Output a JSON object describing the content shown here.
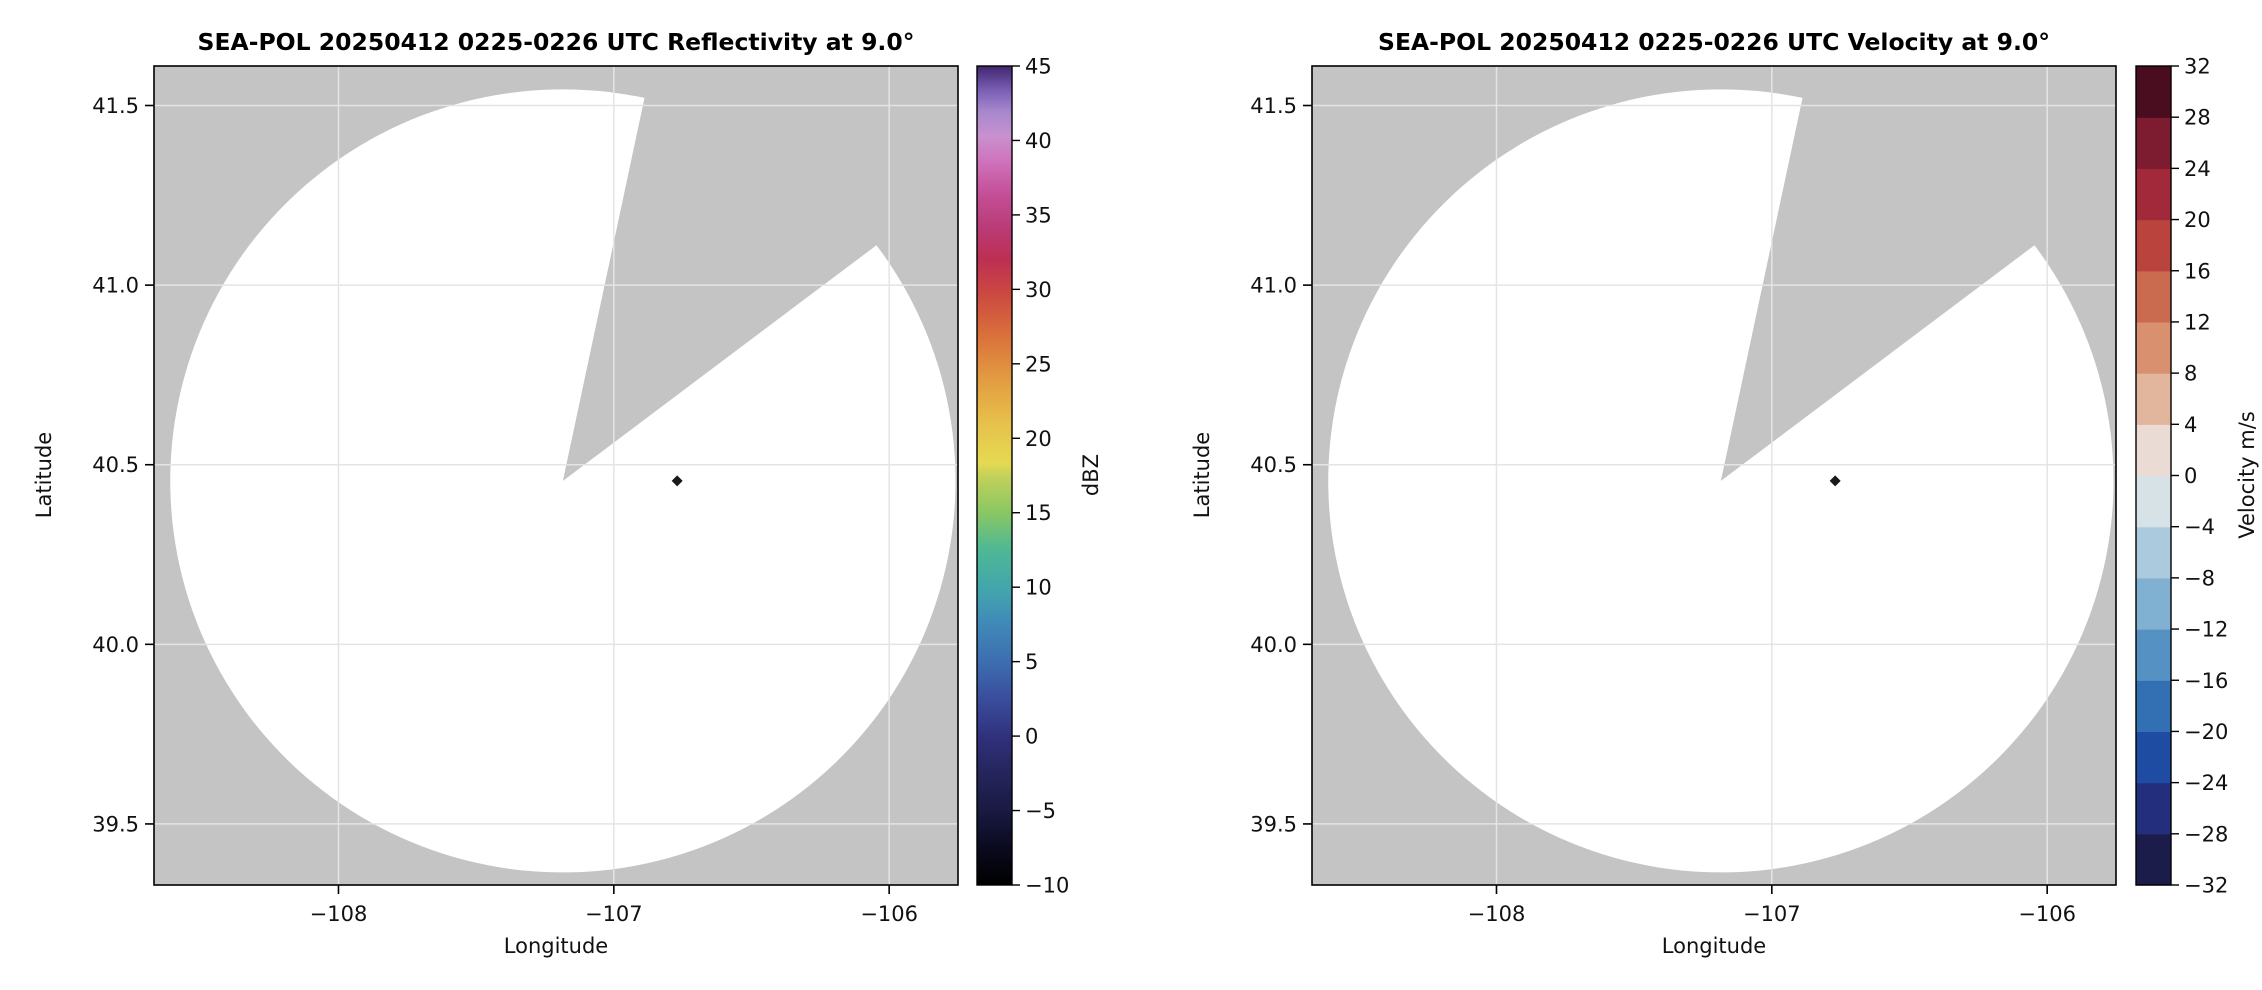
{
  "style": {
    "background": "#ffffff",
    "masked_color": "#c4c4c4",
    "scanned_color": "#ffffff",
    "grid_color": "#e4e4e4",
    "spine_color": "#000000",
    "text_color": "#111111",
    "marker_color": "#1a1a1a"
  },
  "chart_data": [
    {
      "id": "reflectivity",
      "type": "heatmap",
      "title": "SEA-POL 20250412 0225-0226 UTC Reflectivity at 9.0°",
      "instrument": "SEA-POL",
      "date": "20250412",
      "time_utc": "0225-0226 UTC",
      "field": "Reflectivity",
      "elevation_deg": 9.0,
      "xlabel": "Longitude",
      "ylabel": "Latitude",
      "xlim": [
        -108.67,
        -105.75
      ],
      "ylim": [
        39.33,
        41.61
      ],
      "grid": true,
      "xticks": [
        {
          "value": -108,
          "label": "−108"
        },
        {
          "value": -107,
          "label": "−107"
        },
        {
          "value": -106,
          "label": "−106"
        }
      ],
      "yticks": [
        {
          "value": 39.5,
          "label": "39.5"
        },
        {
          "value": 40.0,
          "label": "40.0"
        },
        {
          "value": 40.5,
          "label": "40.5"
        },
        {
          "value": 41.0,
          "label": "41.0"
        },
        {
          "value": 41.5,
          "label": "41.5"
        }
      ],
      "scan": {
        "center_lon": -107.185,
        "center_lat": 40.455,
        "radius_lon_deg": 1.426,
        "radius_lat_deg": 1.09,
        "missing_wedge_az_deg": [
          12,
          53
        ]
      },
      "marker": {
        "lon": -106.77,
        "lat": 40.455,
        "symbol": "diamond"
      },
      "colorbar": {
        "label": "dBZ",
        "type": "continuous",
        "vmin": -10,
        "vmax": 45,
        "ticks": [
          {
            "value": 45,
            "label": "45"
          },
          {
            "value": 40,
            "label": "40"
          },
          {
            "value": 35,
            "label": "35"
          },
          {
            "value": 30,
            "label": "30"
          },
          {
            "value": 25,
            "label": "25"
          },
          {
            "value": 20,
            "label": "20"
          },
          {
            "value": 15,
            "label": "15"
          },
          {
            "value": 10,
            "label": "10"
          },
          {
            "value": 5,
            "label": "5"
          },
          {
            "value": 0,
            "label": "0"
          },
          {
            "value": -5,
            "label": "−5"
          },
          {
            "value": -10,
            "label": "−10"
          }
        ],
        "gradient": [
          {
            "pos": 0.0,
            "color": "#000000"
          },
          {
            "pos": 0.045,
            "color": "#0a0a1e"
          },
          {
            "pos": 0.09,
            "color": "#191942"
          },
          {
            "pos": 0.14,
            "color": "#26265e"
          },
          {
            "pos": 0.18,
            "color": "#30307c"
          },
          {
            "pos": 0.23,
            "color": "#3a4f9e"
          },
          {
            "pos": 0.27,
            "color": "#3d6cb0"
          },
          {
            "pos": 0.32,
            "color": "#3f8ab8"
          },
          {
            "pos": 0.36,
            "color": "#42a5ad"
          },
          {
            "pos": 0.41,
            "color": "#4fb894"
          },
          {
            "pos": 0.455,
            "color": "#8ac763"
          },
          {
            "pos": 0.5,
            "color": "#c4d15a"
          },
          {
            "pos": 0.515,
            "color": "#e5da52"
          },
          {
            "pos": 0.565,
            "color": "#e7c04b"
          },
          {
            "pos": 0.62,
            "color": "#e29a40"
          },
          {
            "pos": 0.67,
            "color": "#da713c"
          },
          {
            "pos": 0.72,
            "color": "#cc4a40"
          },
          {
            "pos": 0.764,
            "color": "#bd2f52"
          },
          {
            "pos": 0.8,
            "color": "#b93a74"
          },
          {
            "pos": 0.845,
            "color": "#c45098"
          },
          {
            "pos": 0.885,
            "color": "#cf74bd"
          },
          {
            "pos": 0.915,
            "color": "#c891cf"
          },
          {
            "pos": 0.945,
            "color": "#a687cd"
          },
          {
            "pos": 0.97,
            "color": "#7b5fb5"
          },
          {
            "pos": 1.0,
            "color": "#41276f"
          }
        ]
      }
    },
    {
      "id": "velocity",
      "type": "heatmap",
      "title": "SEA-POL 20250412 0225-0226 UTC Velocity at 9.0°",
      "instrument": "SEA-POL",
      "date": "20250412",
      "time_utc": "0225-0226 UTC",
      "field": "Velocity",
      "elevation_deg": 9.0,
      "xlabel": "Longitude",
      "ylabel": "Latitude",
      "xlim": [
        -108.67,
        -105.75
      ],
      "ylim": [
        39.33,
        41.61
      ],
      "grid": true,
      "xticks": [
        {
          "value": -108,
          "label": "−108"
        },
        {
          "value": -107,
          "label": "−107"
        },
        {
          "value": -106,
          "label": "−106"
        }
      ],
      "yticks": [
        {
          "value": 39.5,
          "label": "39.5"
        },
        {
          "value": 40.0,
          "label": "40.0"
        },
        {
          "value": 40.5,
          "label": "40.5"
        },
        {
          "value": 41.0,
          "label": "41.0"
        },
        {
          "value": 41.5,
          "label": "41.5"
        }
      ],
      "scan": {
        "center_lon": -107.185,
        "center_lat": 40.455,
        "radius_lon_deg": 1.426,
        "radius_lat_deg": 1.09,
        "missing_wedge_az_deg": [
          12,
          53
        ]
      },
      "marker": {
        "lon": -106.77,
        "lat": 40.455,
        "symbol": "diamond"
      },
      "colorbar": {
        "label": "Velocity m/s",
        "type": "discrete",
        "vmin": -32,
        "vmax": 32,
        "ticks": [
          {
            "value": 32,
            "label": "32"
          },
          {
            "value": 28,
            "label": "28"
          },
          {
            "value": 24,
            "label": "24"
          },
          {
            "value": 20,
            "label": "20"
          },
          {
            "value": 16,
            "label": "16"
          },
          {
            "value": 12,
            "label": "12"
          },
          {
            "value": 8,
            "label": "8"
          },
          {
            "value": 4,
            "label": "4"
          },
          {
            "value": 0,
            "label": "0"
          },
          {
            "value": -4,
            "label": "−4"
          },
          {
            "value": -8,
            "label": "−8"
          },
          {
            "value": -12,
            "label": "−12"
          },
          {
            "value": -16,
            "label": "−16"
          },
          {
            "value": -20,
            "label": "−20"
          },
          {
            "value": -24,
            "label": "−24"
          },
          {
            "value": -28,
            "label": "−28"
          },
          {
            "value": -32,
            "label": "−32"
          }
        ],
        "segments": [
          "#1b1c4a",
          "#232f7c",
          "#1e4ca3",
          "#3270b3",
          "#5691c3",
          "#80b0d2",
          "#abcadd",
          "#d7e2e6",
          "#eadcd4",
          "#e2b69d",
          "#d8906f",
          "#ca6a4e",
          "#ba443d",
          "#a1293a",
          "#7d1b31",
          "#4a0c1f"
        ]
      }
    }
  ]
}
